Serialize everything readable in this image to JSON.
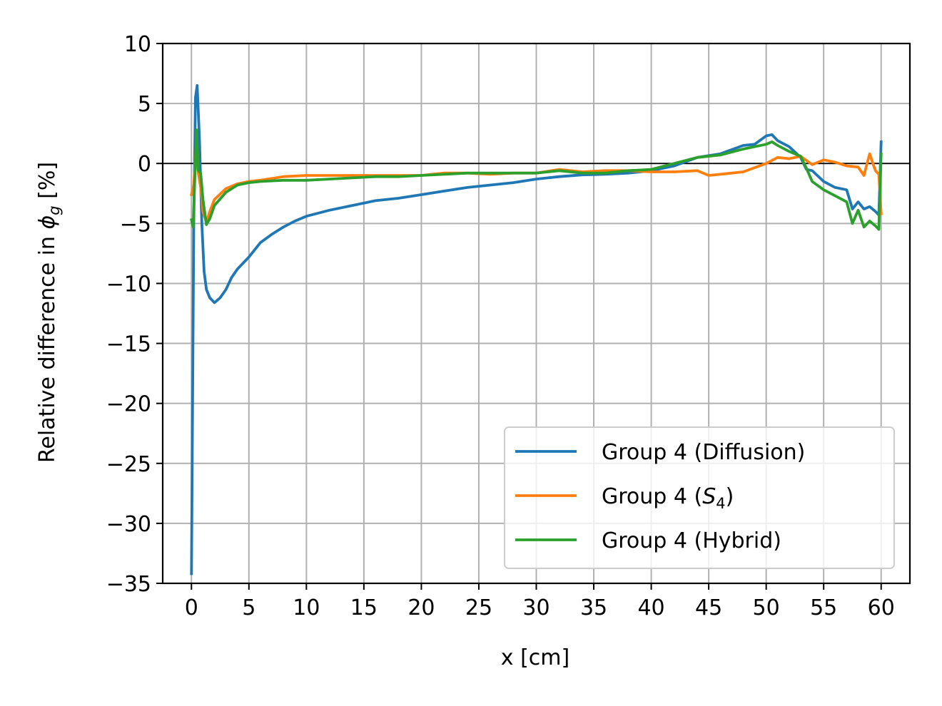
{
  "chart_data": {
    "type": "line",
    "xlabel": "x [cm]",
    "ylabel": "Relative difference in ϕ_g [%]",
    "ylabel_parts": {
      "pre": "Relative difference in ",
      "symbol": "ϕ",
      "sub": "g",
      "post": " [%]"
    },
    "xlim": [
      -2.5,
      62.5
    ],
    "ylim": [
      -35,
      10
    ],
    "xticks": [
      0,
      5,
      10,
      15,
      20,
      25,
      30,
      35,
      40,
      45,
      50,
      55,
      60
    ],
    "xtick_labels": [
      "0",
      "5",
      "10",
      "15",
      "20",
      "25",
      "30",
      "35",
      "40",
      "45",
      "50",
      "55",
      "60"
    ],
    "yticks": [
      10,
      5,
      0,
      -5,
      -10,
      -15,
      -20,
      -25,
      -30,
      -35
    ],
    "ytick_labels": [
      "10",
      "5",
      "0",
      "−5",
      "−10",
      "−15",
      "−20",
      "−25",
      "−30",
      "−35"
    ],
    "grid": true,
    "reference_line_y": 0,
    "legend": "lower-right",
    "series": [
      {
        "name": "Group 4 (Diffusion)",
        "legend_parts": {
          "pre": "Group 4 (Diffusion)",
          "ital": "",
          "sub": "",
          "post": ""
        },
        "color": "#1f77b4",
        "x": [
          0,
          0.2,
          0.35,
          0.5,
          0.7,
          0.9,
          1.1,
          1.3,
          1.6,
          2,
          2.5,
          3,
          3.5,
          4,
          5,
          6,
          7,
          8,
          9,
          10,
          12,
          14,
          16,
          18,
          20,
          22,
          24,
          26,
          28,
          30,
          32,
          34,
          36,
          38,
          40,
          42,
          44,
          46,
          48,
          49,
          50,
          50.5,
          51,
          52,
          53,
          53.5,
          54,
          55,
          56,
          57,
          57.5,
          58,
          58.5,
          59,
          59.5,
          59.8,
          60
        ],
        "y": [
          -34.2,
          -5,
          5.5,
          6.5,
          2,
          -5,
          -9,
          -10.5,
          -11.2,
          -11.6,
          -11.2,
          -10.5,
          -9.5,
          -8.8,
          -7.8,
          -6.6,
          -5.9,
          -5.3,
          -4.8,
          -4.4,
          -3.9,
          -3.5,
          -3.1,
          -2.9,
          -2.6,
          -2.3,
          -2.0,
          -1.8,
          -1.6,
          -1.3,
          -1.1,
          -0.95,
          -0.9,
          -0.8,
          -0.6,
          -0.2,
          0.5,
          0.8,
          1.5,
          1.6,
          2.3,
          2.4,
          1.9,
          1.4,
          0.5,
          -0.5,
          -0.6,
          -1.5,
          -2.0,
          -2.2,
          -3.8,
          -3.2,
          -3.8,
          -3.6,
          -4.0,
          -4.3,
          1.8
        ]
      },
      {
        "name": "Group 4 (S4)",
        "legend_parts": {
          "pre": "Group 4 (",
          "ital": "S",
          "sub": "4",
          "post": ")"
        },
        "color": "#ff7f0e",
        "x": [
          0,
          0.2,
          0.4,
          0.6,
          0.8,
          1.0,
          1.3,
          1.6,
          2,
          3,
          4,
          5,
          6,
          8,
          10,
          12,
          14,
          16,
          18,
          20,
          22,
          24,
          26,
          28,
          30,
          32,
          34,
          36,
          38,
          40,
          42,
          44,
          45,
          46,
          48,
          50,
          51,
          52,
          53,
          54,
          55,
          56,
          57,
          58,
          58.5,
          59,
          59.5,
          59.8,
          60
        ],
        "y": [
          -2.6,
          -1.8,
          1.2,
          -0.8,
          -2.0,
          -4.0,
          -4.9,
          -4.0,
          -3.0,
          -2.1,
          -1.7,
          -1.5,
          -1.4,
          -1.1,
          -1.0,
          -1.0,
          -1.0,
          -1.0,
          -1.0,
          -1.0,
          -0.8,
          -0.8,
          -0.9,
          -0.8,
          -0.8,
          -0.5,
          -0.7,
          -0.6,
          -0.6,
          -0.7,
          -0.7,
          -0.6,
          -1.0,
          -0.9,
          -0.7,
          0.0,
          0.5,
          0.4,
          0.6,
          -0.1,
          0.3,
          0.1,
          -0.2,
          -0.3,
          -1.0,
          0.8,
          -0.6,
          -0.9,
          -4.2
        ]
      },
      {
        "name": "Group 4 (Hybrid)",
        "legend_parts": {
          "pre": "Group 4 (Hybrid)",
          "ital": "",
          "sub": "",
          "post": ""
        },
        "color": "#2ca02c",
        "x": [
          0,
          0.15,
          0.3,
          0.45,
          0.6,
          0.8,
          1.0,
          1.3,
          1.6,
          2,
          3,
          4,
          5,
          6,
          8,
          10,
          12,
          14,
          16,
          18,
          20,
          22,
          24,
          26,
          28,
          30,
          32,
          34,
          36,
          38,
          40,
          42,
          44,
          46,
          48,
          50,
          50.5,
          51,
          52,
          53,
          53.5,
          54,
          55,
          56,
          57,
          57.5,
          58,
          58.5,
          59,
          59.5,
          59.8,
          60
        ],
        "y": [
          -4.7,
          -5.3,
          -1.0,
          2.8,
          -0.6,
          -0.8,
          -3.0,
          -5.1,
          -4.6,
          -3.5,
          -2.4,
          -1.8,
          -1.6,
          -1.5,
          -1.4,
          -1.4,
          -1.3,
          -1.2,
          -1.1,
          -1.1,
          -1.0,
          -0.9,
          -0.8,
          -0.8,
          -0.8,
          -0.8,
          -0.6,
          -0.8,
          -0.8,
          -0.6,
          -0.5,
          0.0,
          0.5,
          0.7,
          1.2,
          1.6,
          1.8,
          1.5,
          1.0,
          0.6,
          -0.4,
          -1.5,
          -2.2,
          -2.7,
          -3.2,
          -5.0,
          -3.9,
          -5.3,
          -4.8,
          -5.2,
          -5.5,
          0.8
        ]
      }
    ]
  }
}
